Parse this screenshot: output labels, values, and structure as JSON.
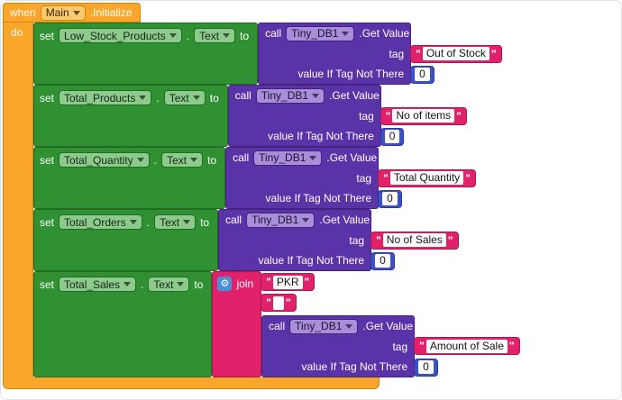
{
  "colors": {
    "event_block": "#F9A62A",
    "setter_block": "#2F9131",
    "call_block": "#5B33A8",
    "text_block": "#E2216B",
    "number_block": "#3D51C6",
    "mutator_icon": "#4A90D9"
  },
  "icons": {
    "gear": "⚙"
  },
  "event": {
    "when_label": "when",
    "component": "Main",
    "event_name": ".Initialize",
    "do_label": "do"
  },
  "labels": {
    "set": "set",
    "dot": ".",
    "to": "to",
    "call": "call",
    "method": ".Get Value",
    "tag": "tag",
    "value_if_tag_not_there": "value If Tag Not There",
    "join": "join"
  },
  "setters": [
    {
      "component": "Low_Stock_Products",
      "property": "Text",
      "call": {
        "component": "Tiny_DB1",
        "tag": "Out of Stock",
        "default": "0"
      }
    },
    {
      "component": "Total_Products",
      "property": "Text",
      "call": {
        "component": "Tiny_DB1",
        "tag": "No of items",
        "default": "0"
      }
    },
    {
      "component": "Total_Quantity",
      "property": "Text",
      "call": {
        "component": "Tiny_DB1",
        "tag": "Total Quantity",
        "default": "0"
      }
    },
    {
      "component": "Total_Orders",
      "property": "Text",
      "call": {
        "component": "Tiny_DB1",
        "tag": "No of Sales",
        "default": "0"
      }
    },
    {
      "component": "Total_Sales",
      "property": "Text",
      "join": {
        "strings": [
          "PKR",
          " "
        ],
        "call": {
          "component": "Tiny_DB1",
          "tag": "Amount of Sale",
          "default": "0"
        }
      }
    }
  ]
}
